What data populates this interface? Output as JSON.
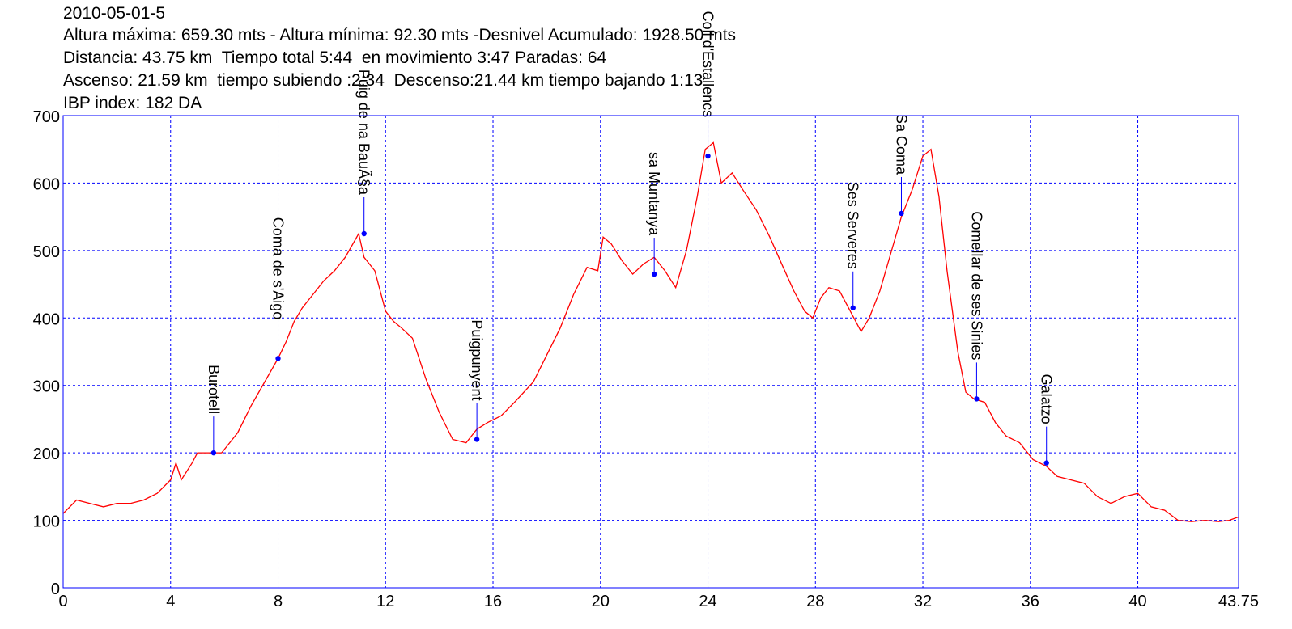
{
  "header": {
    "line1": "2010-05-01-5",
    "line2": "Altura máxima: 659.30 mts - Altura mínima: 92.30 mts -Desnivel Acumulado: 1928.50 mts",
    "line3": "Distancia: 43.75 km  Tiempo total 5:44  en movimiento 3:47 Paradas: 64",
    "line4": "Ascenso: 21.59 km  tiempo subiendo :2:34  Descenso:21.44 km tiempo bajando 1:13",
    "line5": "IBP index: 182 DA"
  },
  "colors": {
    "line": "#ff0000",
    "marker": "#0000ff",
    "grid": "#0000ff",
    "frame": "#0000ff",
    "text": "#000000"
  },
  "chart_data": {
    "type": "line",
    "xlim": [
      0,
      43.75
    ],
    "ylim": [
      0,
      700
    ],
    "x_ticks": [
      "0",
      "4",
      "8",
      "12",
      "16",
      "20",
      "24",
      "28",
      "32",
      "36",
      "40",
      "43.75"
    ],
    "y_ticks": [
      "0",
      "100",
      "200",
      "300",
      "400",
      "500",
      "600",
      "700"
    ],
    "grid": true,
    "series": [
      {
        "x": [
          0,
          0.5,
          1,
          1.5,
          2,
          2.5,
          3,
          3.5,
          4,
          4.2,
          4.4,
          4.8,
          5,
          5.3,
          5.6,
          5.9,
          6.5,
          7,
          7.5,
          8,
          8.3,
          8.6,
          8.9,
          9.3,
          9.7,
          10.1,
          10.5,
          11,
          11.2,
          11.4,
          11.6,
          12,
          12.3,
          12.6,
          13,
          13.5,
          14,
          14.5,
          15,
          15.4,
          15.8,
          16.3,
          16.8,
          17.5,
          18,
          18.5,
          19,
          19.5,
          19.9,
          20.1,
          20.4,
          20.8,
          21.2,
          21.6,
          22,
          22.4,
          22.8,
          23.2,
          23.6,
          23.9,
          24.2,
          24.5,
          24.9,
          25.3,
          25.8,
          26.3,
          26.8,
          27.2,
          27.6,
          27.9,
          28.2,
          28.5,
          28.9,
          29.3,
          29.7,
          30,
          30.4,
          30.8,
          31.2,
          31.6,
          32,
          32.3,
          32.6,
          32.9,
          33.3,
          33.6,
          33.9,
          34.3,
          34.7,
          35.1,
          35.6,
          36.1,
          36.6,
          37,
          37.5,
          38,
          38.5,
          39,
          39.5,
          40,
          40.5,
          41,
          41.5,
          42,
          42.5,
          43,
          43.4,
          43.75
        ],
        "values": [
          110,
          130,
          125,
          120,
          125,
          125,
          130,
          140,
          160,
          185,
          160,
          185,
          200,
          200,
          200,
          200,
          230,
          270,
          305,
          340,
          365,
          395,
          415,
          435,
          455,
          470,
          490,
          525,
          490,
          480,
          470,
          410,
          395,
          385,
          370,
          310,
          260,
          220,
          215,
          235,
          245,
          255,
          275,
          305,
          345,
          385,
          435,
          475,
          470,
          520,
          510,
          485,
          465,
          480,
          490,
          470,
          445,
          500,
          580,
          650,
          660,
          600,
          615,
          590,
          560,
          520,
          475,
          440,
          410,
          400,
          430,
          445,
          440,
          410,
          380,
          400,
          440,
          495,
          550,
          590,
          640,
          650,
          580,
          470,
          350,
          290,
          280,
          275,
          245,
          225,
          215,
          190,
          180,
          165,
          160,
          155,
          135,
          125,
          135,
          140,
          120,
          115,
          100,
          98,
          100,
          98,
          100,
          105
        ]
      }
    ],
    "waypoints": [
      {
        "x": 5.6,
        "y": 200,
        "label": "Burotell"
      },
      {
        "x": 8.0,
        "y": 340,
        "label": "Coma de s'Aigo"
      },
      {
        "x": 11.2,
        "y": 525,
        "label": "Puig de na BauÃ§a"
      },
      {
        "x": 15.4,
        "y": 220,
        "label": "Puigpunyent"
      },
      {
        "x": 22.0,
        "y": 465,
        "label": "sa Muntanya"
      },
      {
        "x": 24.0,
        "y": 640,
        "label": "Coll d'Estallencs"
      },
      {
        "x": 29.4,
        "y": 415,
        "label": "Ses Serveres"
      },
      {
        "x": 31.2,
        "y": 555,
        "label": "Sa Coma"
      },
      {
        "x": 34.0,
        "y": 280,
        "label": "Comellar de ses Sinies"
      },
      {
        "x": 36.6,
        "y": 185,
        "label": "Galatzo"
      }
    ]
  }
}
